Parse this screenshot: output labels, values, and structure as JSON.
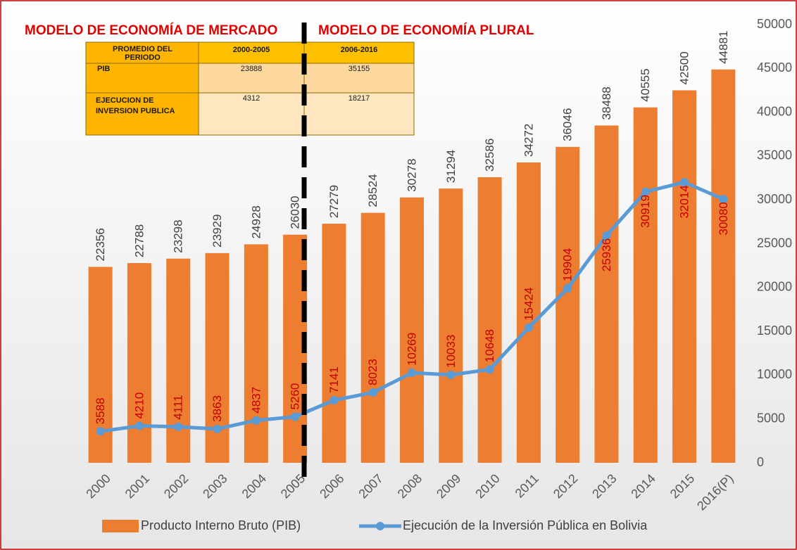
{
  "chart_data": {
    "type": "bar_line",
    "categories": [
      "2000",
      "2001",
      "2002",
      "2003",
      "2004",
      "2005",
      "2006",
      "2007",
      "2008",
      "2009",
      "2010",
      "2011",
      "2012",
      "2013",
      "2014",
      "2015",
      "2016(P)"
    ],
    "series": [
      {
        "name": "Producto Interno Bruto (PIB)",
        "type": "bar",
        "color": "#ed7d31",
        "values": [
          22356,
          22788,
          23298,
          23929,
          24928,
          26030,
          27279,
          28524,
          30278,
          31294,
          32586,
          34272,
          36046,
          38488,
          40555,
          42500,
          44881
        ]
      },
      {
        "name": "Ejecución de la Inversión Pública en Bolivia",
        "type": "line",
        "color": "#5b9bd5",
        "values": [
          3588,
          4210,
          4111,
          3863,
          4837,
          5260,
          7141,
          8023,
          10269,
          10033,
          10648,
          15424,
          19904,
          25936,
          30919,
          32014,
          30080
        ]
      }
    ],
    "ylim": [
      0,
      50000
    ],
    "yticks": [
      0,
      5000,
      10000,
      15000,
      20000,
      25000,
      30000,
      35000,
      40000,
      45000,
      50000
    ],
    "annotations": [
      "MODELO DE ECONOMÍA DE MERCADO",
      "MODELO DE ECONOMÍA PLURAL"
    ],
    "legend": "bottom"
  },
  "table": {
    "header": [
      "PROMEDIO DEL PERIODO",
      "2000-2005",
      "2006-2016"
    ],
    "rows": [
      [
        "PIB",
        "23888",
        "35155"
      ],
      [
        "EJECUCION DE INVERSION PUBLICA",
        "4312",
        "18217"
      ]
    ]
  }
}
